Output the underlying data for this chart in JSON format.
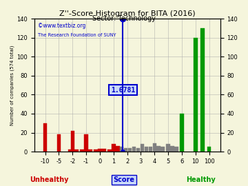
{
  "title": "Z''-Score Histogram for BITA (2016)",
  "subtitle": "Sector: Technology",
  "watermark1": "©www.textbiz.org",
  "watermark2": "The Research Foundation of SUNY",
  "bita_score_label": "1.6781",
  "bita_score_uniform": 5.6781,
  "background_color": "#f5f5dc",
  "tick_labels": [
    "-10",
    "-5",
    "-2",
    "-1",
    "0",
    "1",
    "2",
    "3",
    "4",
    "5",
    "6",
    "10",
    "100"
  ],
  "bar_positions": [
    0.0,
    1.0,
    1.8,
    2.0,
    2.3,
    2.7,
    3.0,
    3.3,
    3.7,
    4.0,
    4.3,
    4.7,
    5.0,
    5.3,
    5.6,
    5.9,
    6.2,
    6.5,
    6.8,
    7.1,
    7.4,
    7.7,
    8.0,
    8.3,
    8.6,
    9.0,
    9.3,
    9.6,
    10.0,
    11.0,
    11.5,
    12.0
  ],
  "bar_heights": [
    30,
    18,
    2,
    22,
    2,
    2,
    18,
    2,
    2,
    3,
    3,
    2,
    8,
    6,
    5,
    4,
    4,
    5,
    4,
    8,
    5,
    5,
    9,
    6,
    5,
    8,
    6,
    5,
    40,
    120,
    130,
    5
  ],
  "bar_colors": [
    "#cc0000",
    "#cc0000",
    "#cc0000",
    "#cc0000",
    "#cc0000",
    "#cc0000",
    "#cc0000",
    "#cc0000",
    "#cc0000",
    "#cc0000",
    "#cc0000",
    "#cc0000",
    "#cc0000",
    "#cc0000",
    "#808080",
    "#808080",
    "#808080",
    "#808080",
    "#808080",
    "#808080",
    "#808080",
    "#808080",
    "#808080",
    "#808080",
    "#808080",
    "#808080",
    "#808080",
    "#808080",
    "#009900",
    "#009900",
    "#009900",
    "#009900"
  ],
  "bar_width": 0.28,
  "xlim": [
    -0.8,
    12.8
  ],
  "ylim": [
    0,
    140
  ],
  "yticks": [
    0,
    20,
    40,
    60,
    80,
    100,
    120,
    140
  ],
  "grid_color": "#aaaaaa",
  "vline_color": "#0000cc",
  "annotation_bg": "#c8d8f8",
  "annotation_border": "#0000cc",
  "score_box_label": "Score",
  "unhealthy_label": "Unhealthy",
  "healthy_label": "Healthy",
  "unhealthy_color": "#cc0000",
  "healthy_color": "#009900",
  "watermark_color": "#0000cc",
  "title_fontsize": 8,
  "subtitle_fontsize": 7,
  "tick_fontsize": 6,
  "ylabel_fontsize": 5
}
